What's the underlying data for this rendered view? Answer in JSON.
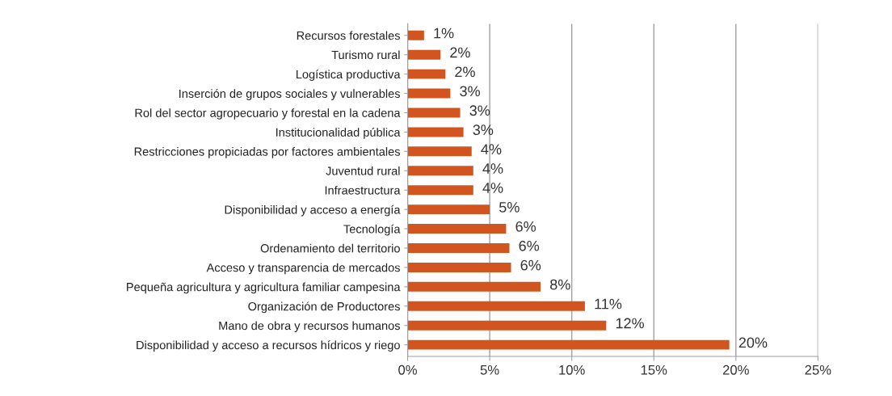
{
  "chart_data": {
    "type": "bar",
    "orientation": "horizontal",
    "categories": [
      "Recursos forestales",
      "Turismo rural",
      "Logística productiva",
      "Inserción de grupos sociales y vulnerables",
      "Rol del sector agropecuario y forestal en la cadena",
      "Institucionalidad pública",
      "Restricciones propiciadas por factores ambientales",
      "Juventud rural",
      "Infraestructura",
      "Disponibilidad y acceso a energía",
      "Tecnología",
      "Ordenamiento del territorio",
      "Acceso y transparencia de mercados",
      "Pequeña agricultura y agricultura familiar campesina",
      "Organización de Productores",
      "Mano de obra y recursos humanos",
      "Disponibilidad y acceso a recursos hídricos y riego"
    ],
    "values": [
      1.0,
      2.0,
      2.3,
      2.6,
      3.2,
      3.4,
      3.9,
      4.0,
      4.0,
      5.0,
      6.0,
      6.2,
      6.3,
      8.1,
      10.8,
      12.1,
      19.6
    ],
    "value_labels": [
      "1%",
      "2%",
      "2%",
      "3%",
      "3%",
      "3%",
      "4%",
      "4%",
      "4%",
      "5%",
      "6%",
      "6%",
      "6%",
      "8%",
      "11%",
      "12%",
      "20%"
    ],
    "color": "#d2541f",
    "xlim": [
      0,
      25
    ],
    "xticks": [
      {
        "value": 0,
        "label": "0%"
      },
      {
        "value": 5,
        "label": "5%"
      },
      {
        "value": 10,
        "label": "10%"
      },
      {
        "value": 15,
        "label": "15%"
      },
      {
        "value": 20,
        "label": "20%"
      },
      {
        "value": 25,
        "label": "25%"
      }
    ],
    "grid": "x",
    "legend": false
  }
}
